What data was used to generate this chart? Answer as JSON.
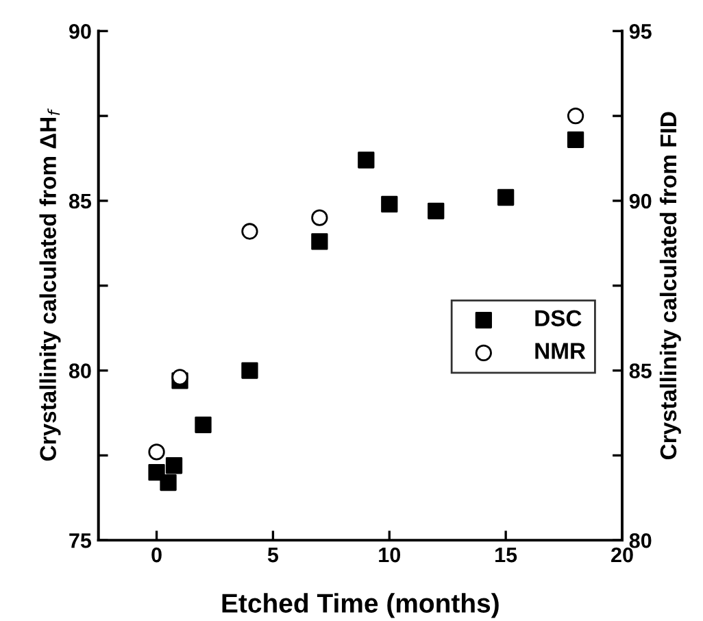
{
  "chart_data": {
    "type": "scatter",
    "xlabel": "Etched Time (months)",
    "ylabel": "Crystallinity calculated from ΔH$_{f}$",
    "y2label": "Crystallinity calculated from FID",
    "xlim": [
      -2.5,
      20
    ],
    "xticks": [
      0,
      5,
      10,
      15,
      20
    ],
    "ylim": [
      75,
      90
    ],
    "yticks": [
      75,
      {
        "value": 77.5,
        "label": null
      },
      80,
      {
        "value": 82.5,
        "label": null
      },
      85,
      {
        "value": 87.5,
        "label": null
      },
      90
    ],
    "y2lim": [
      80,
      95
    ],
    "y2ticks": [
      80,
      {
        "value": 82.5,
        "label": null
      },
      85,
      {
        "value": 87.5,
        "label": null
      },
      90,
      {
        "value": 92.5,
        "label": null
      },
      95
    ],
    "legend": "right",
    "grid": false,
    "series": [
      {
        "name": "DSC",
        "color": "#000000",
        "marker": "square",
        "x": [
          0,
          0.5,
          0.75,
          1,
          2,
          4,
          7,
          9,
          10,
          12,
          15,
          18
        ],
        "values": [
          77.0,
          76.7,
          77.2,
          79.7,
          78.4,
          80.0,
          83.8,
          86.2,
          84.9,
          84.7,
          85.1,
          86.8
        ]
      },
      {
        "name": "NMR",
        "color": "#000000",
        "marker": "circle",
        "axis": "y2",
        "x": [
          0,
          1,
          4,
          7,
          18
        ],
        "values": [
          82.6,
          84.8,
          89.1,
          89.5,
          92.5
        ]
      }
    ]
  }
}
